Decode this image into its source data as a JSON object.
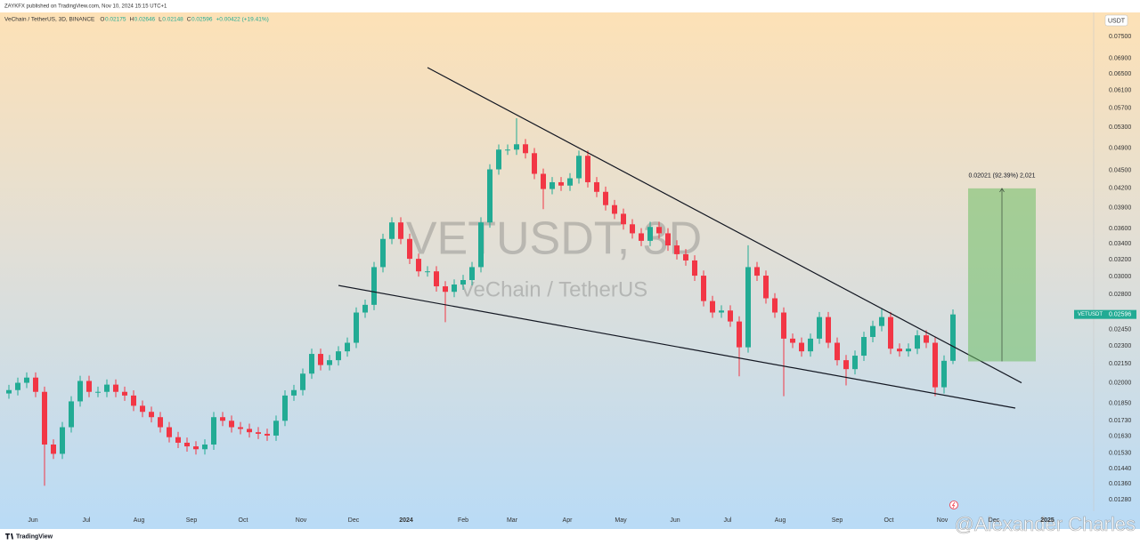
{
  "chart_data": {
    "type": "candlestick",
    "publisher": "ZAYKFX published on TradingView.com, Nov 10, 2024 15:15 UTC+1",
    "legend_title": "VeChain / TetherUS, 3D, BINANCE",
    "ohlc_keys": [
      "O",
      "H",
      "L",
      "C"
    ],
    "change": "+0.00422 (+19.41%)",
    "title": "VETUSDT, 3D",
    "subtitle": "VeChain / TetherUS",
    "symbol": "VETUSDT",
    "currency": "USDT",
    "branding": "TradingView",
    "watermark": "@Alexander Charles",
    "colors": {
      "up": "#22ab94",
      "down": "#f23645"
    },
    "log_scale": true,
    "grid": false,
    "open": [
      0.0192,
      0.01945,
      0.02,
      0.0204,
      0.01932,
      0.0158,
      0.01525,
      0.01688,
      0.01863,
      0.02014,
      0.01932,
      0.01932,
      0.01986,
      0.01932,
      0.01905,
      0.01832,
      0.0179,
      0.01754,
      0.01688,
      0.01625,
      0.01591,
      0.01569,
      0.01552,
      0.0158,
      0.01754,
      0.0173,
      0.01688,
      0.01677,
      0.01656,
      0.01646,
      0.01635,
      0.0173,
      0.01905,
      0.01945,
      0.02071,
      0.02233,
      0.0214,
      0.0218,
      0.02255,
      0.0233,
      0.02615,
      0.02693,
      0.0311,
      0.03463,
      0.03688,
      0.03463,
      0.0321,
      0.0306,
      0.0306,
      0.0289,
      0.0283,
      0.0291,
      0.0296,
      0.0311,
      0.03688,
      0.04516,
      0.0487,
      0.0487,
      0.0497,
      0.04804,
      0.0444,
      0.0419,
      0.043,
      0.04245,
      0.04365,
      0.04756,
      0.043,
      0.04145,
      0.0394,
      0.03812,
      0.03662,
      0.03538,
      0.03438,
      0.03625,
      0.03538,
      0.03378,
      0.03267,
      0.0319,
      0.0301,
      0.02732,
      0.02615,
      0.02635,
      0.02527,
      0.0229,
      0.0311,
      0.0301,
      0.02761,
      0.02615,
      0.02367,
      0.0233,
      0.02255,
      0.02367,
      0.0257,
      0.0233,
      0.0218,
      0.02107,
      0.02218,
      0.02382,
      0.02484,
      0.0257,
      0.02278,
      0.02255,
      0.02278,
      0.02397,
      0.0233,
      0.01966,
      0.02175
    ],
    "high": [
      0.01984,
      0.0204,
      0.02081,
      0.02081,
      0.01971,
      0.01612,
      0.01722,
      0.019,
      0.02054,
      0.02054,
      0.01971,
      0.02026,
      0.02026,
      0.01971,
      0.01943,
      0.01869,
      0.01826,
      0.01789,
      0.01722,
      0.01658,
      0.01623,
      0.016,
      0.01612,
      0.01789,
      0.01789,
      0.01765,
      0.01722,
      0.01711,
      0.01689,
      0.01679,
      0.01765,
      0.01943,
      0.01984,
      0.02112,
      0.02278,
      0.02278,
      0.02224,
      0.023,
      0.02377,
      0.02667,
      0.02747,
      0.03172,
      0.03532,
      0.03762,
      0.03762,
      0.03532,
      0.03274,
      0.03121,
      0.03121,
      0.02948,
      0.02968,
      0.03019,
      0.03172,
      0.03762,
      0.04606,
      0.04967,
      0.04967,
      0.0549,
      0.0507,
      0.049,
      0.04529,
      0.04386,
      0.04386,
      0.04452,
      0.04851,
      0.04851,
      0.04386,
      0.04228,
      0.04019,
      0.03888,
      0.03735,
      0.03609,
      0.03698,
      0.03698,
      0.03609,
      0.03446,
      0.03332,
      0.03254,
      0.0307,
      0.02787,
      0.02688,
      0.02688,
      0.02578,
      0.0338,
      0.03172,
      0.0307,
      0.02816,
      0.02667,
      0.02414,
      0.02377,
      0.02414,
      0.02621,
      0.02621,
      0.02377,
      0.02224,
      0.02262,
      0.0243,
      0.02534,
      0.0265,
      0.02621,
      0.02324,
      0.02324,
      0.02445,
      0.02445,
      0.02377,
      0.0222,
      0.02646
    ],
    "low": [
      0.01882,
      0.01906,
      0.0196,
      0.01893,
      0.0135,
      0.01495,
      0.01495,
      0.01654,
      0.01826,
      0.01893,
      0.01893,
      0.01893,
      0.01893,
      0.01867,
      0.01795,
      0.01754,
      0.01719,
      0.01654,
      0.01593,
      0.01559,
      0.01538,
      0.01521,
      0.01521,
      0.01548,
      0.01695,
      0.01654,
      0.01643,
      0.01623,
      0.01613,
      0.01602,
      0.01602,
      0.01695,
      0.01867,
      0.01906,
      0.0203,
      0.02097,
      0.02097,
      0.02136,
      0.0221,
      0.02283,
      0.02563,
      0.02639,
      0.03048,
      0.03394,
      0.03394,
      0.03146,
      0.02999,
      0.02999,
      0.02832,
      0.0252,
      0.02773,
      0.02852,
      0.02901,
      0.03048,
      0.03614,
      0.04426,
      0.04773,
      0.04773,
      0.04708,
      0.04351,
      0.0388,
      0.04106,
      0.0416,
      0.0416,
      0.04278,
      0.04214,
      0.04062,
      0.03861,
      0.03736,
      0.03589,
      0.03467,
      0.03369,
      0.03369,
      0.03467,
      0.0331,
      0.03202,
      0.03126,
      0.0295,
      0.02677,
      0.02563,
      0.02563,
      0.02476,
      0.0205,
      0.02244,
      0.0295,
      0.02706,
      0.02563,
      0.019,
      0.02283,
      0.0221,
      0.0221,
      0.0232,
      0.02283,
      0.02136,
      0.0198,
      0.02065,
      0.02174,
      0.02334,
      0.02434,
      0.02232,
      0.0221,
      0.0221,
      0.02232,
      0.02283,
      0.019,
      0.0192,
      0.02148
    ],
    "close": [
      0.01945,
      0.02,
      0.0204,
      0.01932,
      0.0158,
      0.01525,
      0.01688,
      0.01863,
      0.02014,
      0.01932,
      0.01932,
      0.01986,
      0.01932,
      0.01905,
      0.01832,
      0.0179,
      0.01754,
      0.01688,
      0.01625,
      0.01591,
      0.01569,
      0.01552,
      0.0158,
      0.01754,
      0.0173,
      0.01688,
      0.01677,
      0.01656,
      0.01646,
      0.01635,
      0.0173,
      0.01905,
      0.01945,
      0.02071,
      0.02233,
      0.0214,
      0.0218,
      0.02255,
      0.0233,
      0.02615,
      0.02693,
      0.0311,
      0.03463,
      0.03688,
      0.03463,
      0.0321,
      0.0306,
      0.0306,
      0.0289,
      0.0283,
      0.0291,
      0.0296,
      0.0311,
      0.03688,
      0.04516,
      0.0487,
      0.0487,
      0.0497,
      0.04804,
      0.0444,
      0.0419,
      0.043,
      0.04245,
      0.04365,
      0.04756,
      0.043,
      0.04145,
      0.0394,
      0.03812,
      0.03662,
      0.03538,
      0.03438,
      0.03625,
      0.03538,
      0.03378,
      0.03267,
      0.0319,
      0.0301,
      0.02732,
      0.02615,
      0.02635,
      0.02527,
      0.0229,
      0.0311,
      0.0301,
      0.02761,
      0.02615,
      0.02367,
      0.0233,
      0.02255,
      0.02367,
      0.0257,
      0.0233,
      0.0218,
      0.02107,
      0.02218,
      0.02382,
      0.02484,
      0.0257,
      0.02278,
      0.02255,
      0.02278,
      0.02397,
      0.0233,
      0.01966,
      0.02175,
      0.02596
    ],
    "xlim": [
      -1,
      121.8
    ],
    "xticks": [
      {
        "value": 2.7,
        "label": "Jun"
      },
      {
        "value": 8.7,
        "label": "Jul"
      },
      {
        "value": 14.6,
        "label": "Aug"
      },
      {
        "value": 20.5,
        "label": "Sep"
      },
      {
        "value": 26.3,
        "label": "Oct"
      },
      {
        "value": 32.8,
        "label": "Nov"
      },
      {
        "value": 38.7,
        "label": "Dec"
      },
      {
        "value": 44.6,
        "label": "2024"
      },
      {
        "value": 51,
        "label": "Feb"
      },
      {
        "value": 56.5,
        "label": "Mar"
      },
      {
        "value": 62.7,
        "label": "Apr"
      },
      {
        "value": 68.7,
        "label": "May"
      },
      {
        "value": 74.8,
        "label": "Jun"
      },
      {
        "value": 80.7,
        "label": "Jul"
      },
      {
        "value": 86.6,
        "label": "Aug"
      },
      {
        "value": 93,
        "label": "Sep"
      },
      {
        "value": 98.8,
        "label": "Oct"
      },
      {
        "value": 104.8,
        "label": "Nov"
      },
      {
        "value": 110.6,
        "label": "Dec"
      },
      {
        "value": 116.6,
        "label": "2025"
      }
    ],
    "ylim": [
      0.01225,
      0.0822
    ],
    "yticks": [
      {
        "value": 0.075,
        "label": "0.07500"
      },
      {
        "value": 0.069,
        "label": "0.06900"
      },
      {
        "value": 0.065,
        "label": "0.06500"
      },
      {
        "value": 0.061,
        "label": "0.06100"
      },
      {
        "value": 0.057,
        "label": "0.05700"
      },
      {
        "value": 0.053,
        "label": "0.05300"
      },
      {
        "value": 0.049,
        "label": "0.04900"
      },
      {
        "value": 0.045,
        "label": "0.04500"
      },
      {
        "value": 0.042,
        "label": "0.04200"
      },
      {
        "value": 0.039,
        "label": "0.03900"
      },
      {
        "value": 0.036,
        "label": "0.03600"
      },
      {
        "value": 0.034,
        "label": "0.03400"
      },
      {
        "value": 0.032,
        "label": "0.03200"
      },
      {
        "value": 0.03,
        "label": "0.03000"
      },
      {
        "value": 0.028,
        "label": "0.02800"
      },
      {
        "value": 0.0245,
        "label": "0.02450"
      },
      {
        "value": 0.023,
        "label": "0.02300"
      },
      {
        "value": 0.0215,
        "label": "0.02150"
      },
      {
        "value": 0.02,
        "label": "0.02000"
      },
      {
        "value": 0.0185,
        "label": "0.01850"
      },
      {
        "value": 0.0173,
        "label": "0.01730"
      },
      {
        "value": 0.0163,
        "label": "0.01630"
      },
      {
        "value": 0.0153,
        "label": "0.01530"
      },
      {
        "value": 0.0144,
        "label": "0.01440"
      },
      {
        "value": 0.0136,
        "label": "0.01360"
      },
      {
        "value": 0.0128,
        "label": "0.01280"
      }
    ],
    "trendlines": [
      {
        "x": [
          47,
          113.7
        ],
        "y": [
          0.0666,
          0.02
        ]
      },
      {
        "x": [
          37,
          113
        ],
        "y": [
          0.029,
          0.01816
        ]
      }
    ],
    "measure": {
      "label": "0.02021 (92.39%) 2,021",
      "x": [
        107.7,
        115.3
      ],
      "y": [
        0.0217,
        0.042
      ]
    }
  }
}
